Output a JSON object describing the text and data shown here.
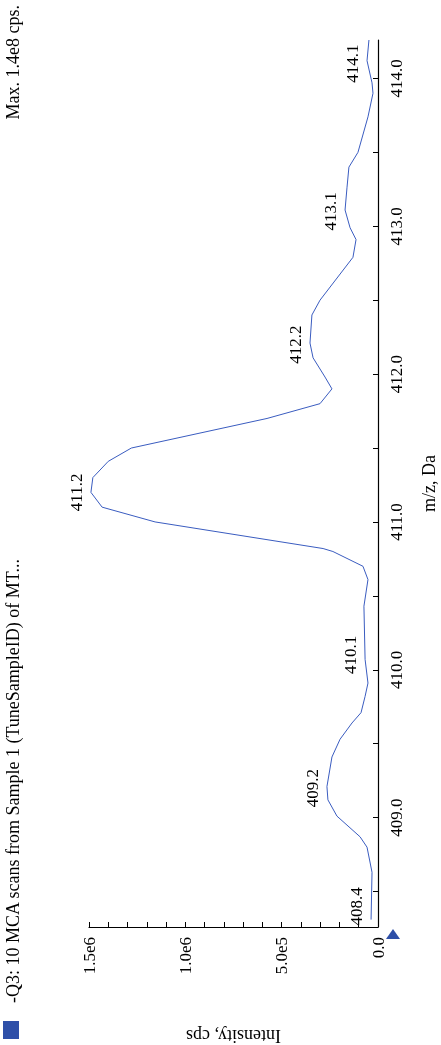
{
  "chart_data": {
    "type": "line",
    "title": "-Q3: 10 MCA scans from Sample 1 (TuneSampleID) of MT...",
    "xlabel": "Intensity, cps",
    "ylabel": "m/z, Da",
    "annotations": [
      "Max. 1.4e8 cps.",
      {
        "text": "408.4",
        "x": 35000,
        "y": 408.4
      },
      {
        "text": "409.2",
        "x": 265000,
        "y": 409.2
      },
      {
        "text": "410.1",
        "x": 67000,
        "y": 410.1
      },
      {
        "text": "411.2",
        "x": 1490000,
        "y": 411.2
      },
      {
        "text": "412.2",
        "x": 353000,
        "y": 412.2
      },
      {
        "text": "413.1",
        "x": 171000,
        "y": 413.1
      },
      {
        "text": "414.1",
        "x": 57000,
        "y": 414.1
      }
    ],
    "series": [
      {
        "color": "#3a5cc0",
        "x": [
          36000,
          31000,
          57000,
          93000,
          213000,
          260000,
          265000,
          239000,
          197000,
          135000,
          88000,
          67000,
          52000,
          67000,
          73000,
          52000,
          78000,
          234000,
          285000,
          1157000,
          1432000,
          1490000,
          1480000,
          1400000,
          1280000,
          576000,
          301000,
          239000,
          275000,
          337000,
          353000,
          343000,
          301000,
          130000,
          114000,
          145000,
          171000,
          161000,
          151000,
          104000,
          52000,
          26000,
          31000,
          57000,
          47000
        ],
        "values": [
          408.31,
          408.63,
          408.8,
          408.87,
          409.01,
          409.12,
          409.21,
          409.41,
          409.53,
          409.64,
          409.71,
          409.82,
          409.91,
          410.07,
          410.43,
          410.61,
          410.7,
          410.8,
          410.82,
          411.0,
          411.1,
          411.2,
          411.3,
          411.41,
          411.5,
          411.7,
          411.8,
          411.9,
          411.98,
          412.11,
          412.21,
          412.4,
          412.5,
          412.79,
          412.91,
          412.99,
          413.11,
          413.26,
          413.4,
          413.5,
          413.74,
          413.9,
          413.97,
          414.12,
          414.26
        ]
      }
    ],
    "ylim": [
      408.26,
      414.26
    ],
    "yticks": [
      {
        "value": 408.5,
        "label": null
      },
      {
        "value": 409,
        "label": "409.0"
      },
      {
        "value": 409.5,
        "label": null
      },
      {
        "value": 410,
        "label": "410.0"
      },
      {
        "value": 410.5,
        "label": null
      },
      {
        "value": 411,
        "label": "411.0"
      },
      {
        "value": 411.5,
        "label": null
      },
      {
        "value": 412,
        "label": "412.0"
      },
      {
        "value": 412.5,
        "label": null
      },
      {
        "value": 413,
        "label": "413.0"
      },
      {
        "value": 413.5,
        "label": null
      },
      {
        "value": 414,
        "label": "414.0"
      }
    ],
    "xlim": [
      1500000,
      0
    ],
    "xticks": [
      {
        "value": 0,
        "label": "0.0"
      },
      {
        "value": 100000,
        "label": null
      },
      {
        "value": 200000,
        "label": null
      },
      {
        "value": 300000,
        "label": null
      },
      {
        "value": 400000,
        "label": null
      },
      {
        "value": 500000,
        "label": "5.0e5"
      },
      {
        "value": 600000,
        "label": null
      },
      {
        "value": 700000,
        "label": null
      },
      {
        "value": 800000,
        "label": null
      },
      {
        "value": 900000,
        "label": null
      },
      {
        "value": 1000000,
        "label": "1.0e6"
      },
      {
        "value": 1100000,
        "label": null
      },
      {
        "value": 1200000,
        "label": null
      },
      {
        "value": 1300000,
        "label": null
      },
      {
        "value": 1400000,
        "label": null
      },
      {
        "value": 1500000,
        "label": "1.5e6"
      }
    ],
    "grid": false,
    "marker": "none",
    "line_style": "solid"
  }
}
